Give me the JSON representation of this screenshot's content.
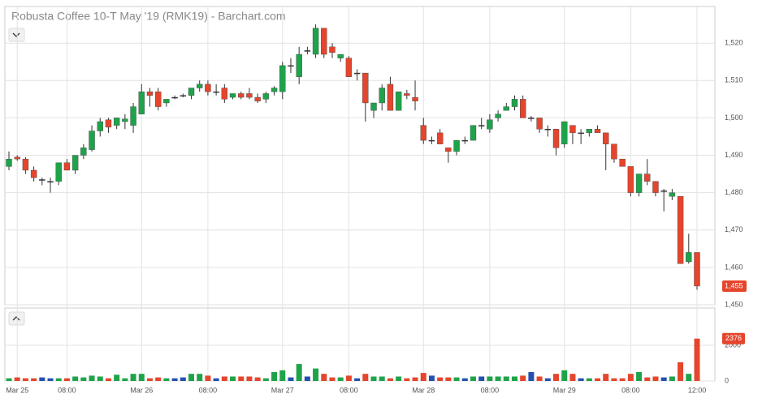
{
  "chart_data": [
    {
      "type": "candlestick",
      "title": "Robusta Coffee 10-T May '19 (RMK19) - Barchart.com",
      "categories": [
        null,
        "Mar 25",
        null,
        null,
        null,
        null,
        null,
        "08:00",
        null,
        null,
        null,
        null,
        null,
        null,
        null,
        null,
        "Mar 26",
        null,
        null,
        null,
        null,
        null,
        null,
        null,
        "08:00",
        null,
        null,
        null,
        null,
        null,
        null,
        null,
        null,
        "Mar 27",
        null,
        null,
        null,
        null,
        null,
        null,
        null,
        "08:00",
        null,
        null,
        null,
        null,
        null,
        null,
        null,
        null,
        "Mar 28",
        null,
        null,
        null,
        null,
        null,
        null,
        null,
        "08:00",
        null,
        null,
        null,
        null,
        null,
        null,
        null,
        null,
        "Mar 29",
        null,
        null,
        null,
        null,
        null,
        null,
        null,
        "08:00",
        null,
        null,
        null,
        null,
        null,
        null,
        null,
        "12:00"
      ],
      "open": [
        1487,
        1489.5,
        1489,
        1486,
        1483.5,
        1483,
        1483,
        1488,
        1486,
        1490,
        1491.5,
        1496.5,
        1499.5,
        1498,
        1499,
        1498,
        1501,
        1507,
        1507,
        1504,
        1505.5,
        1506,
        1506,
        1508,
        1509,
        1507,
        1508,
        1505.5,
        1506.5,
        1506.5,
        1505.5,
        1505,
        1507,
        1507,
        1514,
        1511,
        1518,
        1517,
        1524,
        1519,
        1516,
        1516,
        1512,
        1512,
        1502,
        1504,
        1509,
        1502,
        1506.5,
        1505.5,
        1498,
        1494,
        1496,
        1492,
        1491,
        1494,
        1494,
        1498,
        1497,
        1500,
        1502,
        1503,
        1505,
        1500,
        1500,
        1497,
        1497,
        1493,
        1498,
        1496,
        1496,
        1497,
        1496,
        1493,
        1489,
        1487,
        1480,
        1485,
        1483,
        1480.5,
        1479,
        1479,
        1461.5,
        1464
      ],
      "high": [
        1491,
        1490,
        1489.5,
        1487,
        1484,
        1484,
        1488,
        1489,
        1490,
        1493,
        1498,
        1500,
        1500,
        1500,
        1501,
        1504,
        1509,
        1508,
        1508,
        1505,
        1506,
        1506.5,
        1508,
        1510,
        1510,
        1509,
        1509,
        1506.5,
        1507,
        1508,
        1506.5,
        1507,
        1508.5,
        1515,
        1516,
        1519,
        1519,
        1525,
        1524,
        1520,
        1517,
        1516.5,
        1513,
        1512,
        1504,
        1509,
        1511,
        1507,
        1507.5,
        1510,
        1500,
        1495,
        1497,
        1492,
        1494,
        1495,
        1498,
        1500,
        1501,
        1502,
        1504,
        1506,
        1506,
        1500.5,
        1500,
        1498,
        1497,
        1499,
        1498,
        1497,
        1497,
        1498,
        1496,
        1493,
        1489,
        1487,
        1485,
        1489,
        1483,
        1481,
        1481,
        1479,
        1469,
        1464
      ],
      "low": [
        1486,
        1488.5,
        1485,
        1483,
        1482,
        1480,
        1482,
        1486,
        1485,
        1489,
        1491,
        1495,
        1496,
        1497,
        1497,
        1496,
        1501,
        1503,
        1502,
        1503,
        1505,
        1505.5,
        1505,
        1507,
        1506,
        1506,
        1504,
        1505,
        1505,
        1505,
        1504,
        1504,
        1506,
        1505,
        1512,
        1509,
        1517,
        1516,
        1516,
        1516,
        1515,
        1511,
        1510,
        1499,
        1500,
        1502,
        1502,
        1502,
        1505,
        1502,
        1493,
        1493,
        1493,
        1488,
        1490,
        1493,
        1494,
        1497,
        1496,
        1499,
        1502,
        1502,
        1500,
        1499,
        1496,
        1495,
        1490,
        1492,
        1493,
        1493,
        1495,
        1496,
        1486,
        1488,
        1487,
        1479,
        1479,
        1482,
        1479,
        1475,
        1478,
        1461,
        1461,
        1454
      ],
      "close": [
        1489,
        1489,
        1486,
        1484,
        1483.5,
        1483,
        1488,
        1486,
        1490,
        1492,
        1496.5,
        1499,
        1497.5,
        1500,
        1499.7,
        1503,
        1507,
        1506,
        1503,
        1505,
        1505.5,
        1506,
        1508,
        1509,
        1507,
        1507,
        1505,
        1506.5,
        1505.5,
        1505.5,
        1504.5,
        1506.5,
        1508,
        1514,
        1514,
        1517,
        1518,
        1524,
        1517,
        1517.5,
        1517,
        1511,
        1512,
        1504,
        1504,
        1508,
        1502,
        1507,
        1506,
        1504.5,
        1494,
        1494,
        1493,
        1491,
        1494,
        1494,
        1498,
        1498,
        1499.5,
        1501,
        1503,
        1505,
        1500,
        1500,
        1497,
        1497,
        1492,
        1499,
        1496,
        1496,
        1497,
        1496,
        1493,
        1489,
        1487,
        1480,
        1485,
        1483,
        1480,
        1480.5,
        1480,
        1461,
        1464,
        1455
      ],
      "up_color": "#1fa34a",
      "down_color": "#e5452c",
      "ylim": [
        1450,
        1529.8
      ],
      "yticks": [
        {
          "value": 1450,
          "label": "1,450"
        },
        {
          "value": 1460,
          "label": "1,460"
        },
        {
          "value": 1470,
          "label": "1,470"
        },
        {
          "value": 1480,
          "label": "1,480"
        },
        {
          "value": 1490,
          "label": "1,490"
        },
        {
          "value": 1500,
          "label": "1,500"
        },
        {
          "value": 1510,
          "label": "1,510"
        },
        {
          "value": 1520,
          "label": "1,520"
        }
      ],
      "last_price": {
        "value": 1455,
        "label": "1,455"
      },
      "grid": true
    },
    {
      "type": "bar",
      "values": [
        150,
        200,
        150,
        150,
        200,
        150,
        150,
        150,
        250,
        200,
        300,
        250,
        150,
        350,
        150,
        400,
        400,
        150,
        200,
        150,
        150,
        200,
        400,
        400,
        300,
        150,
        250,
        250,
        250,
        250,
        200,
        150,
        500,
        600,
        200,
        950,
        250,
        700,
        400,
        200,
        200,
        300,
        150,
        400,
        250,
        250,
        150,
        250,
        150,
        200,
        450,
        300,
        200,
        200,
        200,
        150,
        250,
        250,
        250,
        250,
        250,
        250,
        300,
        500,
        250,
        150,
        400,
        600,
        400,
        150,
        150,
        150,
        400,
        150,
        150,
        400,
        500,
        200,
        250,
        200,
        250,
        1050,
        400,
        2376
      ],
      "flat_color": "#2450b0",
      "ylim": [
        0,
        4090
      ],
      "yticks": [
        0,
        2000
      ],
      "last_value": 2376,
      "grid": true
    }
  ]
}
